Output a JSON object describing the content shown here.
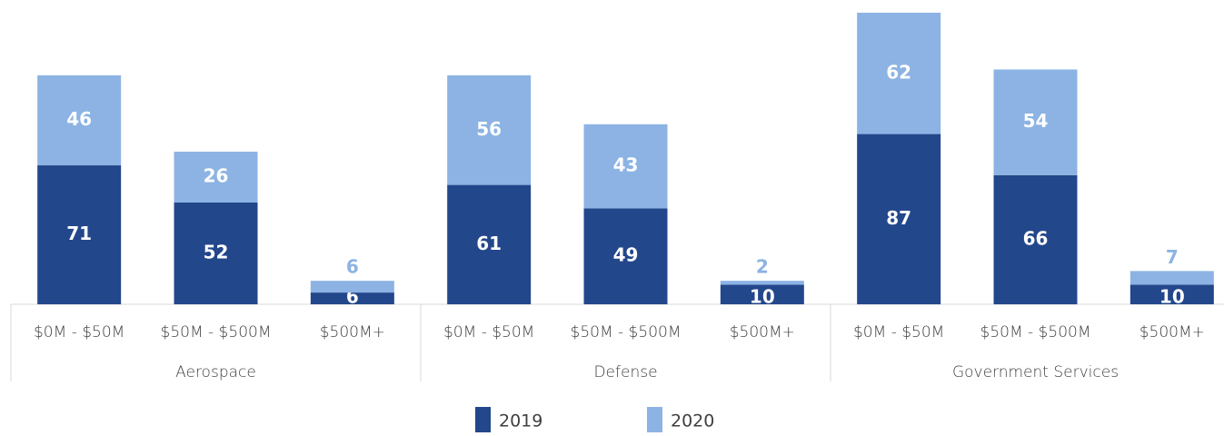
{
  "chart_data": {
    "type": "stacked_bar",
    "categories": [
      "$0M - $50M",
      "$50M - $500M",
      "$500M+",
      "$0M - $50M",
      "$50M - $500M",
      "$500M+",
      "$0M - $50M",
      "$50M - $500M",
      "$500M+"
    ],
    "groups": [
      "Aerospace",
      "Defense",
      "Government Services"
    ],
    "series": [
      {
        "name": "2019",
        "color": "#23478b",
        "values": [
          71,
          52,
          6,
          61,
          49,
          10,
          87,
          66,
          10
        ]
      },
      {
        "name": "2020",
        "color": "#8cb3e3",
        "values": [
          46,
          26,
          6,
          56,
          43,
          2,
          62,
          54,
          7
        ]
      }
    ],
    "legend": "bottom"
  }
}
